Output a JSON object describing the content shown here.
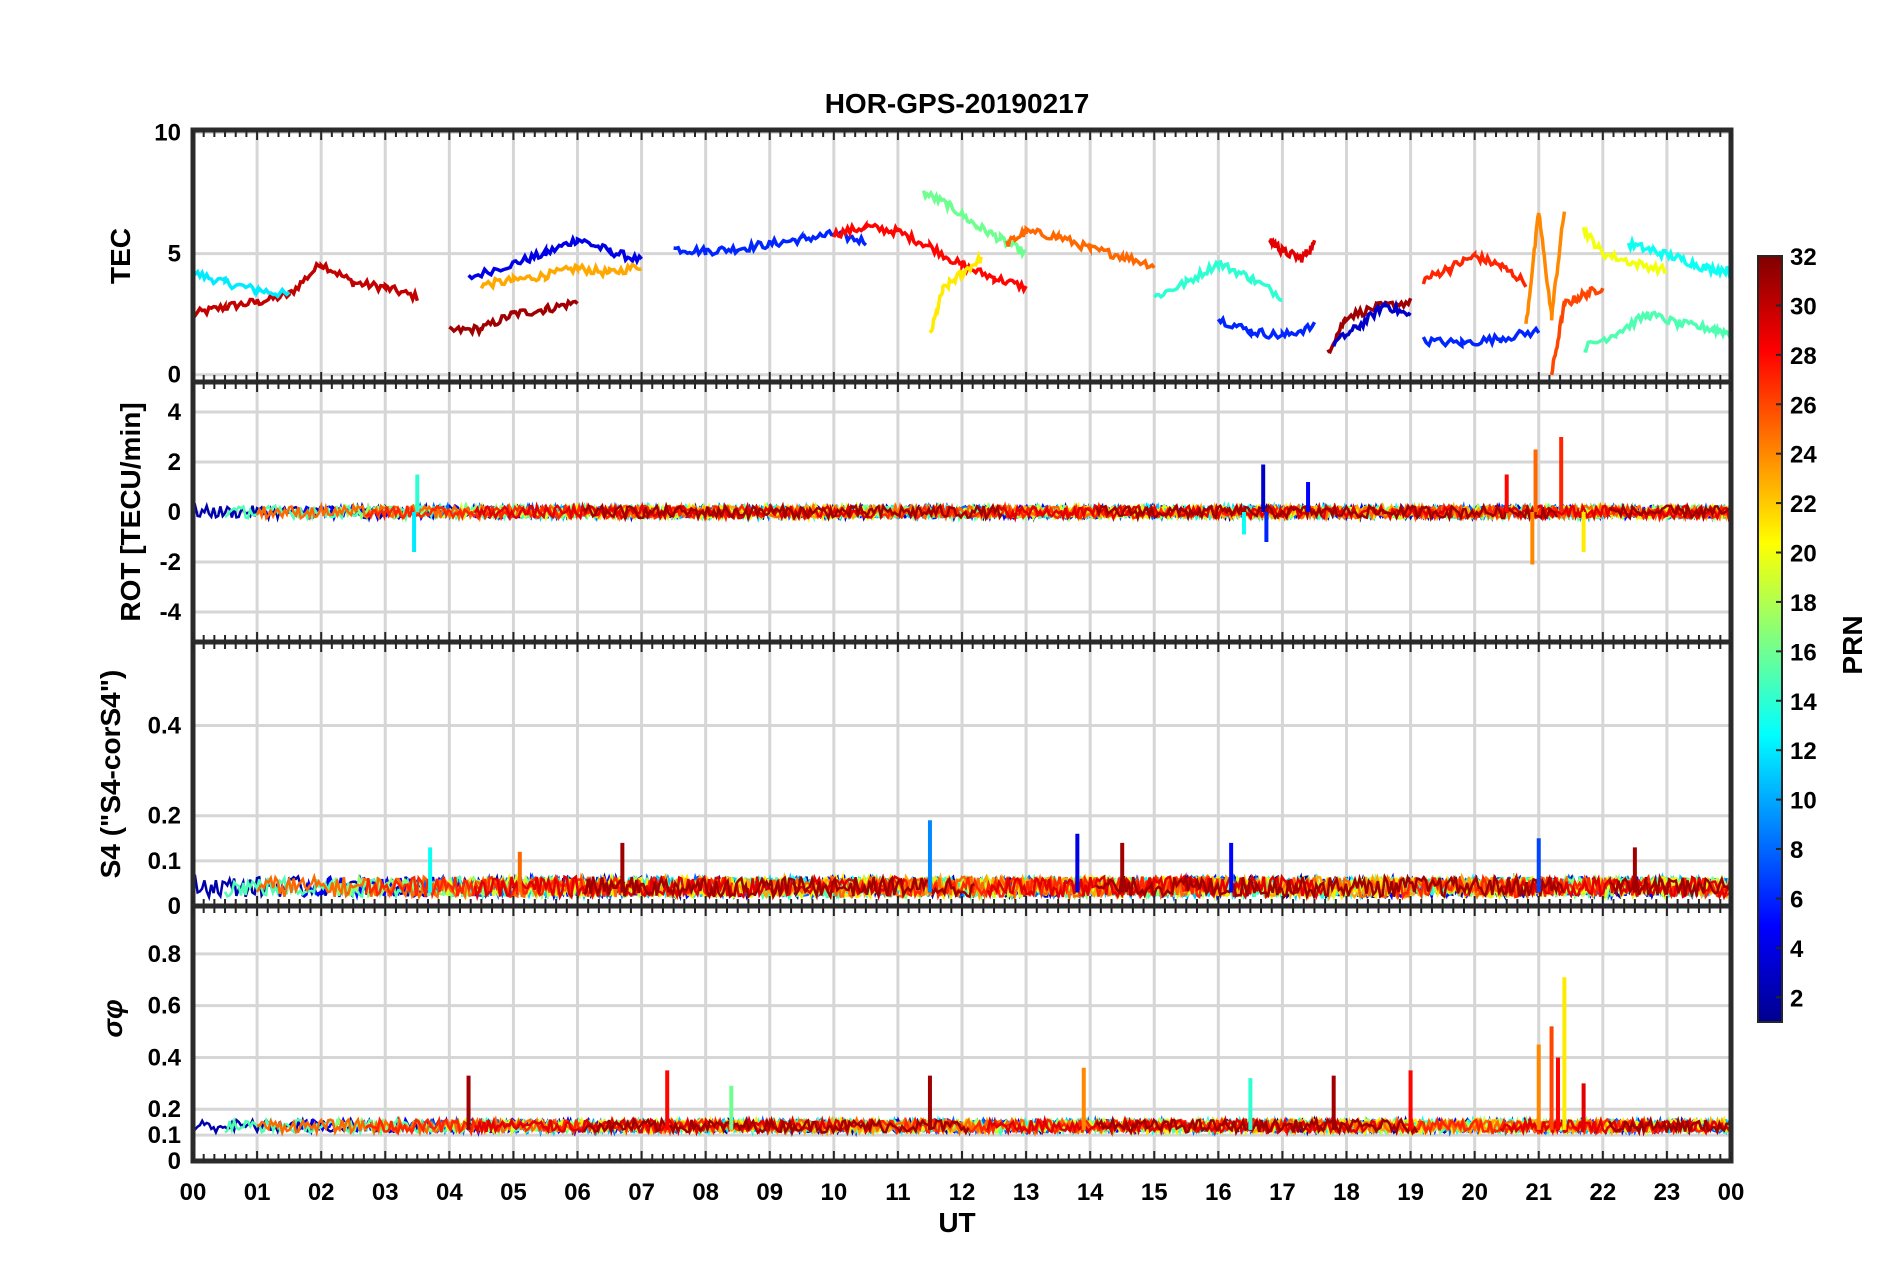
{
  "figure": {
    "title": "HOR-GPS-20190217",
    "xlabel": "UT",
    "x_tick_labels": [
      "00",
      "01",
      "02",
      "03",
      "04",
      "05",
      "06",
      "07",
      "08",
      "09",
      "10",
      "11",
      "12",
      "13",
      "14",
      "15",
      "16",
      "17",
      "18",
      "19",
      "20",
      "21",
      "22",
      "23",
      "00"
    ]
  },
  "colorbar": {
    "label": "PRN",
    "range": [
      1,
      32
    ],
    "tick_labels": [
      "2",
      "4",
      "6",
      "8",
      "10",
      "12",
      "14",
      "16",
      "18",
      "20",
      "22",
      "24",
      "26",
      "28",
      "30",
      "32"
    ],
    "colors": [
      "#00008f",
      "#0000ff",
      "#0080ff",
      "#00ffff",
      "#80ff80",
      "#ffff00",
      "#ff8000",
      "#ff0000",
      "#800000"
    ]
  },
  "chart_data": [
    {
      "type": "line",
      "panel": "TEC",
      "ylabel": "TEC",
      "ylim": [
        0,
        10
      ],
      "y_tick_labels": [
        "0",
        "5",
        "10"
      ],
      "xlim": [
        0,
        24
      ],
      "description_series": "multiple PRN tracks, values mostly 1-7 TECU",
      "series": [
        {
          "prn": 30,
          "x": [
            0.0,
            0.5,
            1.0,
            1.5,
            2.0,
            2.5,
            3.0,
            3.5
          ],
          "values": [
            2.5,
            2.8,
            3.0,
            3.3,
            4.6,
            3.8,
            3.6,
            3.2
          ]
        },
        {
          "prn": 12,
          "x": [
            0.0,
            0.5,
            1.0,
            1.5
          ],
          "values": [
            4.2,
            3.8,
            3.5,
            3.3
          ]
        },
        {
          "prn": 4,
          "x": [
            4.3,
            5.0,
            5.5,
            6.0,
            6.5,
            7.0
          ],
          "values": [
            4.0,
            4.6,
            5.0,
            5.6,
            5.1,
            4.7
          ]
        },
        {
          "prn": 31,
          "x": [
            4.0,
            4.5,
            5.0,
            5.5,
            6.0
          ],
          "values": [
            1.8,
            1.9,
            2.5,
            2.7,
            3.0
          ]
        },
        {
          "prn": 23,
          "x": [
            4.5,
            5.0,
            5.5,
            6.0,
            6.5,
            7.0
          ],
          "values": [
            3.7,
            3.9,
            4.1,
            4.4,
            4.2,
            4.5
          ]
        },
        {
          "prn": 6,
          "x": [
            7.5,
            8.0,
            8.5,
            9.0,
            9.5,
            10.0,
            10.5
          ],
          "values": [
            5.2,
            5.1,
            5.2,
            5.4,
            5.6,
            5.8,
            5.5
          ]
        },
        {
          "prn": 28,
          "x": [
            10.0,
            10.5,
            11.0,
            11.5,
            12.0,
            12.5,
            13.0
          ],
          "values": [
            5.8,
            6.1,
            5.9,
            5.3,
            4.5,
            4.0,
            3.6
          ]
        },
        {
          "prn": 16,
          "x": [
            11.4,
            11.8,
            12.2,
            12.6,
            13.0
          ],
          "values": [
            7.5,
            7.0,
            6.2,
            5.6,
            5.0
          ]
        },
        {
          "prn": 21,
          "x": [
            11.5,
            11.7,
            12.0,
            12.3
          ],
          "values": [
            1.6,
            3.5,
            4.2,
            4.8
          ]
        },
        {
          "prn": 25,
          "x": [
            12.7,
            13.0,
            13.5,
            14.0,
            14.5,
            15.0
          ],
          "values": [
            5.4,
            5.9,
            5.7,
            5.2,
            4.9,
            4.5
          ]
        },
        {
          "prn": 14,
          "x": [
            15.0,
            15.5,
            16.0,
            16.5,
            17.0
          ],
          "values": [
            3.2,
            3.8,
            4.6,
            4.0,
            3.2
          ]
        },
        {
          "prn": 6,
          "x": [
            16.0,
            16.5,
            17.0,
            17.5
          ],
          "values": [
            2.3,
            1.8,
            1.6,
            2.0
          ]
        },
        {
          "prn": 29,
          "x": [
            16.8,
            17.0,
            17.3,
            17.5
          ],
          "values": [
            5.6,
            5.1,
            4.8,
            5.4
          ]
        },
        {
          "prn": 31,
          "x": [
            17.7,
            18.0,
            18.5,
            19.0
          ],
          "values": [
            0.9,
            2.4,
            2.8,
            3.0
          ]
        },
        {
          "prn": 3,
          "x": [
            17.8,
            18.2,
            18.6,
            19.0
          ],
          "values": [
            1.3,
            2.0,
            2.9,
            2.4
          ]
        },
        {
          "prn": 27,
          "x": [
            19.2,
            19.6,
            20.0,
            20.4,
            20.8
          ],
          "values": [
            3.9,
            4.4,
            4.9,
            4.5,
            3.8
          ]
        },
        {
          "prn": 6,
          "x": [
            19.2,
            19.8,
            20.4,
            21.0
          ],
          "values": [
            1.4,
            1.3,
            1.5,
            1.8
          ]
        },
        {
          "prn": 24,
          "x": [
            20.8,
            21.0,
            21.2,
            21.4
          ],
          "values": [
            2.0,
            6.7,
            2.4,
            6.8
          ]
        },
        {
          "prn": 26,
          "x": [
            21.2,
            21.4,
            21.7,
            22.0
          ],
          "values": [
            0.0,
            2.9,
            3.3,
            3.6
          ]
        },
        {
          "prn": 20,
          "x": [
            21.7,
            22.0,
            22.5,
            23.0
          ],
          "values": [
            6.0,
            5.0,
            4.6,
            4.3
          ]
        },
        {
          "prn": 13,
          "x": [
            22.4,
            22.8,
            23.2,
            23.6,
            24.0
          ],
          "values": [
            5.4,
            5.1,
            4.8,
            4.4,
            4.3
          ]
        },
        {
          "prn": 15,
          "x": [
            21.7,
            22.2,
            22.7,
            23.2,
            23.7,
            24.0
          ],
          "values": [
            1.1,
            1.7,
            2.5,
            2.1,
            1.9,
            1.7
          ]
        }
      ]
    },
    {
      "type": "line",
      "panel": "ROT",
      "ylabel": "ROT [TECU/min]",
      "ylim": [
        -5,
        5
      ],
      "y_tick_labels": [
        "-4",
        "-2",
        "0",
        "2",
        "4"
      ],
      "xlim": [
        0,
        24
      ],
      "notes": "noise around 0; bursts near 03.5 (-1.6..1.5), 16.5-17.5 (-1.2..1.9), 20.5-21.5 (-2.1..3.0)"
    },
    {
      "type": "line",
      "panel": "S4",
      "ylabel": "S4 (\"S4-corS4\")",
      "ylim": [
        0,
        0.6
      ],
      "y_tick_labels": [
        "0",
        "0.1",
        "0.2",
        "0.4"
      ],
      "xlim": [
        0,
        24
      ],
      "notes": "mostly 0.01-0.08; spikes 0.19 near 11.5, 0.16 near 13.8, 0.15 near 21.0, 0.14 near 16.2"
    },
    {
      "type": "line",
      "panel": "sigma_phi",
      "ylabel": "σφ",
      "ylim": [
        0,
        1
      ],
      "y_tick_labels": [
        "0",
        "0.1",
        "0.2",
        "0.4",
        "0.6",
        "0.8"
      ],
      "xlim": [
        0,
        24
      ],
      "notes": "baseline 0.10-0.15; spikes 0.33 at 4.3, 0.35 at 7.4, 0.33 at 11.5, 0.36 at 13.9, 0.32 at 16.5, 0.33 at 17.8, 0.35 at 19.0; burst 20.7-21.6 to 0.71 at 21.4"
    }
  ]
}
